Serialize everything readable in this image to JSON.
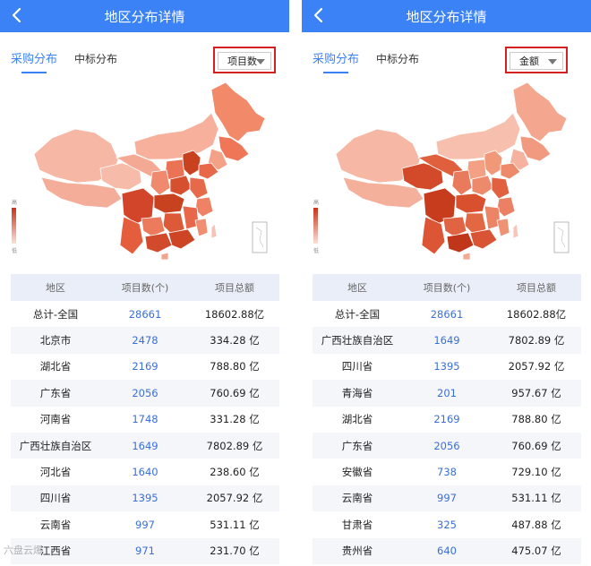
{
  "colors": {
    "accent": "#3b82f6",
    "highlight_frame": "#d32020",
    "link_blue": "#3b6fd8"
  },
  "icons": {
    "back": "chevron-left-icon",
    "caret": "caret-down-icon"
  },
  "panels": [
    {
      "title": "地区分布详情",
      "tabs": [
        "采购分布",
        "中标分布"
      ],
      "dropdown": {
        "value": "项目数"
      },
      "legend": {
        "top": "高",
        "bottom": "低"
      },
      "table": {
        "headers": [
          "地区",
          "项目数(个)",
          "项目总额"
        ],
        "rows": [
          {
            "region": "总计-全国",
            "count": "28661",
            "amount": "18602.88亿"
          },
          {
            "region": "北京市",
            "count": "2478",
            "amount": "334.28 亿"
          },
          {
            "region": "湖北省",
            "count": "2169",
            "amount": "788.80 亿"
          },
          {
            "region": "广东省",
            "count": "2056",
            "amount": "760.69 亿"
          },
          {
            "region": "河南省",
            "count": "1748",
            "amount": "331.28 亿"
          },
          {
            "region": "广西壮族自治区",
            "count": "1649",
            "amount": "7802.89 亿"
          },
          {
            "region": "河北省",
            "count": "1640",
            "amount": "238.60 亿"
          },
          {
            "region": "四川省",
            "count": "1395",
            "amount": "2057.92 亿"
          },
          {
            "region": "云南省",
            "count": "997",
            "amount": "531.11 亿"
          },
          {
            "region": "江西省",
            "count": "971",
            "amount": "231.70 亿"
          }
        ]
      }
    },
    {
      "title": "地区分布详情",
      "tabs": [
        "采购分布",
        "中标分布"
      ],
      "dropdown": {
        "value": "金额"
      },
      "legend": {
        "top": "高",
        "bottom": "低"
      },
      "table": {
        "headers": [
          "地区",
          "项目数(个)",
          "项目总额"
        ],
        "rows": [
          {
            "region": "总计-全国",
            "count": "28661",
            "amount": "18602.88亿"
          },
          {
            "region": "广西壮族自治区",
            "count": "1649",
            "amount": "7802.89 亿"
          },
          {
            "region": "四川省",
            "count": "1395",
            "amount": "2057.92 亿"
          },
          {
            "region": "青海省",
            "count": "201",
            "amount": "957.67 亿"
          },
          {
            "region": "湖北省",
            "count": "2169",
            "amount": "788.80 亿"
          },
          {
            "region": "广东省",
            "count": "2056",
            "amount": "760.69 亿"
          },
          {
            "region": "安徽省",
            "count": "738",
            "amount": "729.10 亿"
          },
          {
            "region": "云南省",
            "count": "997",
            "amount": "531.11 亿"
          },
          {
            "region": "甘肃省",
            "count": "325",
            "amount": "487.88 亿"
          },
          {
            "region": "贵州省",
            "count": "640",
            "amount": "475.07 亿"
          }
        ]
      }
    }
  ],
  "watermark": "六盘云爆"
}
